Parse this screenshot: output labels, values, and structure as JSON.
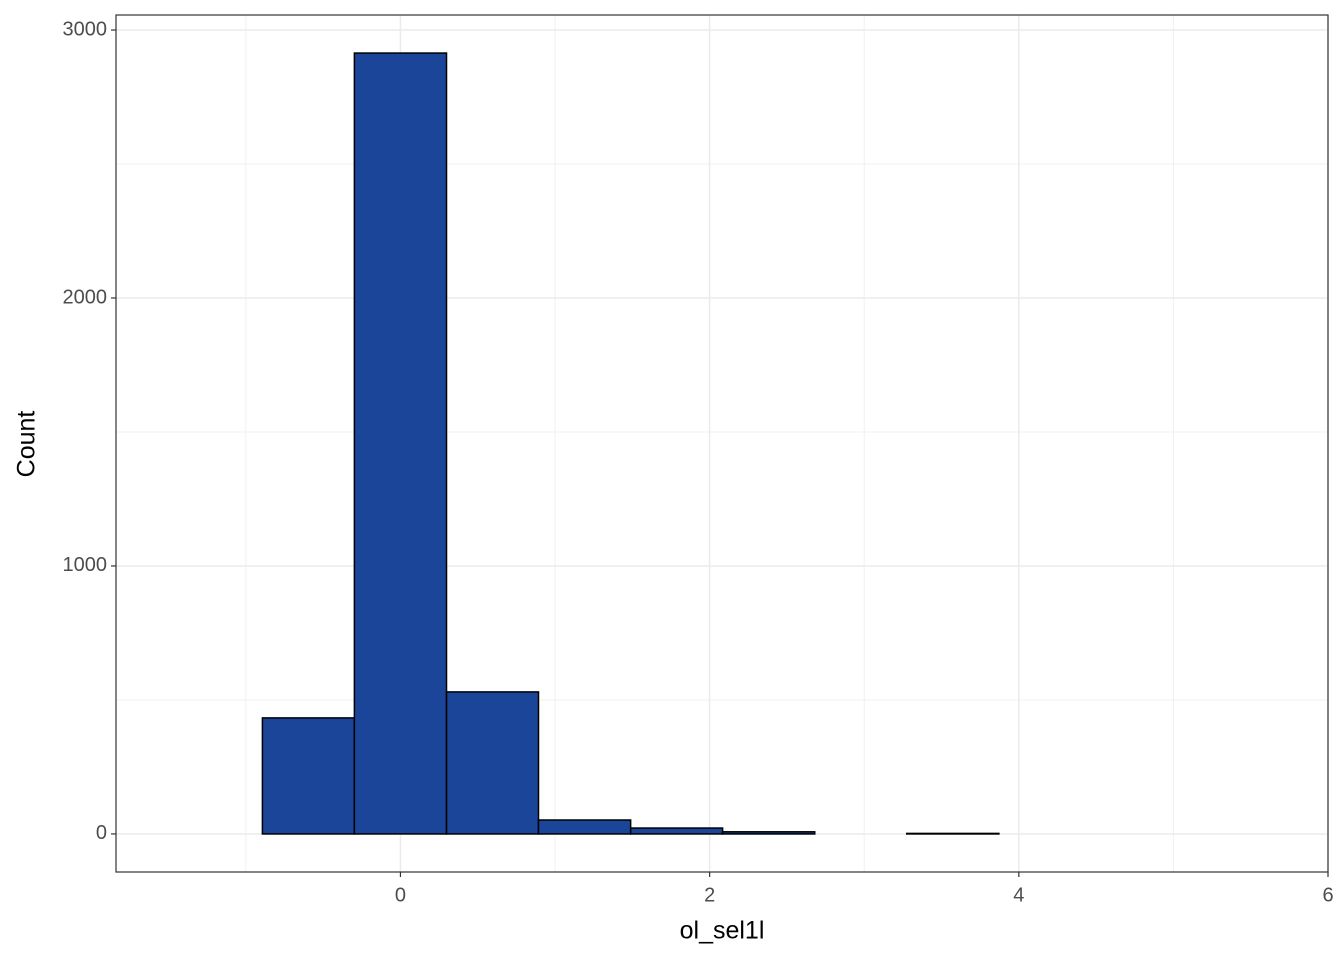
{
  "chart_data": {
    "type": "histogram",
    "x_label": "ol_sel1l",
    "y_label": "Count",
    "bins": [
      -1.489,
      -0.893,
      -0.298,
      0.298,
      0.893,
      1.489,
      2.084,
      2.68,
      3.275,
      3.871,
      4.466,
      5.062,
      5.657
    ],
    "counts": [
      0,
      433,
      2914,
      530,
      52,
      22,
      8,
      0,
      2,
      0,
      0,
      0
    ],
    "color": "#1a4599",
    "edgecolor": "#000000",
    "xlim": [
      -1.84,
      6.0
    ],
    "xticks": [
      0,
      2,
      4,
      6
    ],
    "ylim": [
      -142,
      3056
    ],
    "yticks": [
      0,
      1000,
      2000,
      3000
    ],
    "grid": true
  }
}
